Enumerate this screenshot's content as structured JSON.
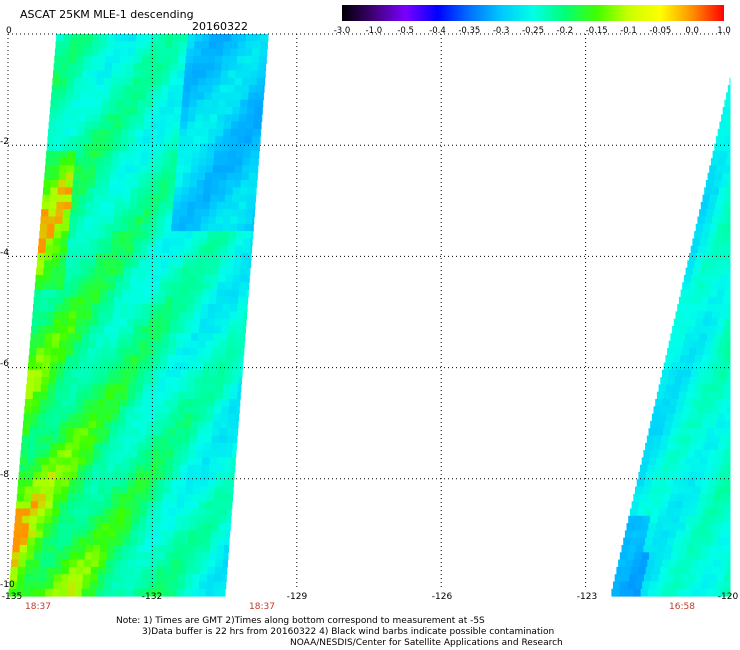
{
  "header": {
    "title": "ASCAT 25KM MLE-1 descending",
    "date": "20160322"
  },
  "colorbar": {
    "labels": [
      "-3.0",
      "-1.0",
      "-0.5",
      "-0.4",
      "-0.35",
      "-0.3",
      "-0.25",
      "-0.2",
      "-0.15",
      "-0.1",
      "-0.05",
      "0.0",
      "1.0"
    ],
    "colors": [
      "#000000",
      "#40007a",
      "#7a00ff",
      "#0000ff",
      "#0070ff",
      "#00c8ff",
      "#00ffe6",
      "#00ff78",
      "#40ff00",
      "#c8ff00",
      "#ffff00",
      "#ff9000",
      "#ff0000"
    ]
  },
  "axes": {
    "y_ticks": [
      "0",
      "-2",
      "-4",
      "-6",
      "-8",
      "-10"
    ],
    "x_ticks": [
      "-135",
      "-132",
      "-129",
      "-126",
      "-123",
      "-120"
    ],
    "times": [
      "18:37",
      "18:37",
      "16:58"
    ]
  },
  "notes": {
    "line1": "Note: 1) Times are GMT 2)Times along bottom correspond to measurement at -5S",
    "line2": "3)Data buffer is 22 hrs from 20160322 4) Black wind barbs indicate possible contamination",
    "line3": "NOAA/NESDIS/Center for Satellite Applications and Research"
  },
  "map_data": {
    "lon_range": [
      -135,
      -120
    ],
    "lat_range": [
      -10,
      0
    ],
    "swaths": [
      {
        "name": "west",
        "lon_edges_top": [
          -134.0,
          -129.6
        ],
        "lon_edges_bottom": [
          -135.0,
          -130.5
        ]
      },
      {
        "name": "east",
        "lon_edges_top": [
          -119.8,
          -120.0
        ],
        "lon_edges_bottom": [
          -122.5,
          -120.0
        ]
      }
    ]
  }
}
